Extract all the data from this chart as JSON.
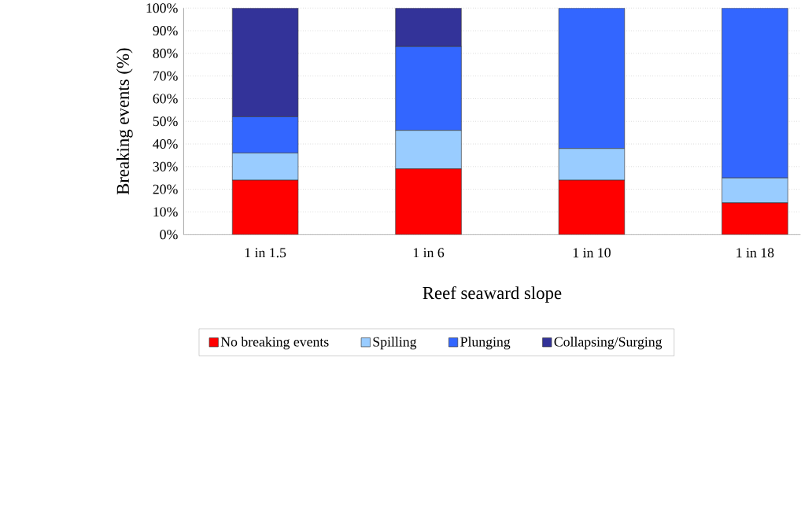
{
  "chart_data": {
    "type": "bar",
    "stacked": true,
    "xlabel": "Reef seaward slope",
    "ylabel": "Breaking events (%)",
    "categories": [
      "1 in 1.5",
      "1 in 6",
      "1 in 10",
      "1 in 18"
    ],
    "series": [
      {
        "name": "No breaking events",
        "color": "#ff0000",
        "values": [
          24,
          29,
          24,
          14
        ]
      },
      {
        "name": "Spilling",
        "color": "#99ccff",
        "values": [
          12,
          17,
          14,
          11
        ]
      },
      {
        "name": "Plunging",
        "color": "#3366ff",
        "values": [
          16,
          37,
          62,
          75
        ]
      },
      {
        "name": "Collapsing/Surging",
        "color": "#333399",
        "values": [
          48,
          17,
          0,
          0
        ]
      }
    ],
    "ylim": [
      0,
      100
    ],
    "yticks": [
      {
        "value": 0,
        "label": "0%"
      },
      {
        "value": 10,
        "label": "10%"
      },
      {
        "value": 20,
        "label": "20%"
      },
      {
        "value": 30,
        "label": "30%"
      },
      {
        "value": 40,
        "label": "40%"
      },
      {
        "value": 50,
        "label": "50%"
      },
      {
        "value": 60,
        "label": "60%"
      },
      {
        "value": 70,
        "label": "70%"
      },
      {
        "value": 80,
        "label": "80%"
      },
      {
        "value": 90,
        "label": "90%"
      },
      {
        "value": 100,
        "label": "100%"
      }
    ],
    "grid": "y",
    "legend": "bottom"
  }
}
